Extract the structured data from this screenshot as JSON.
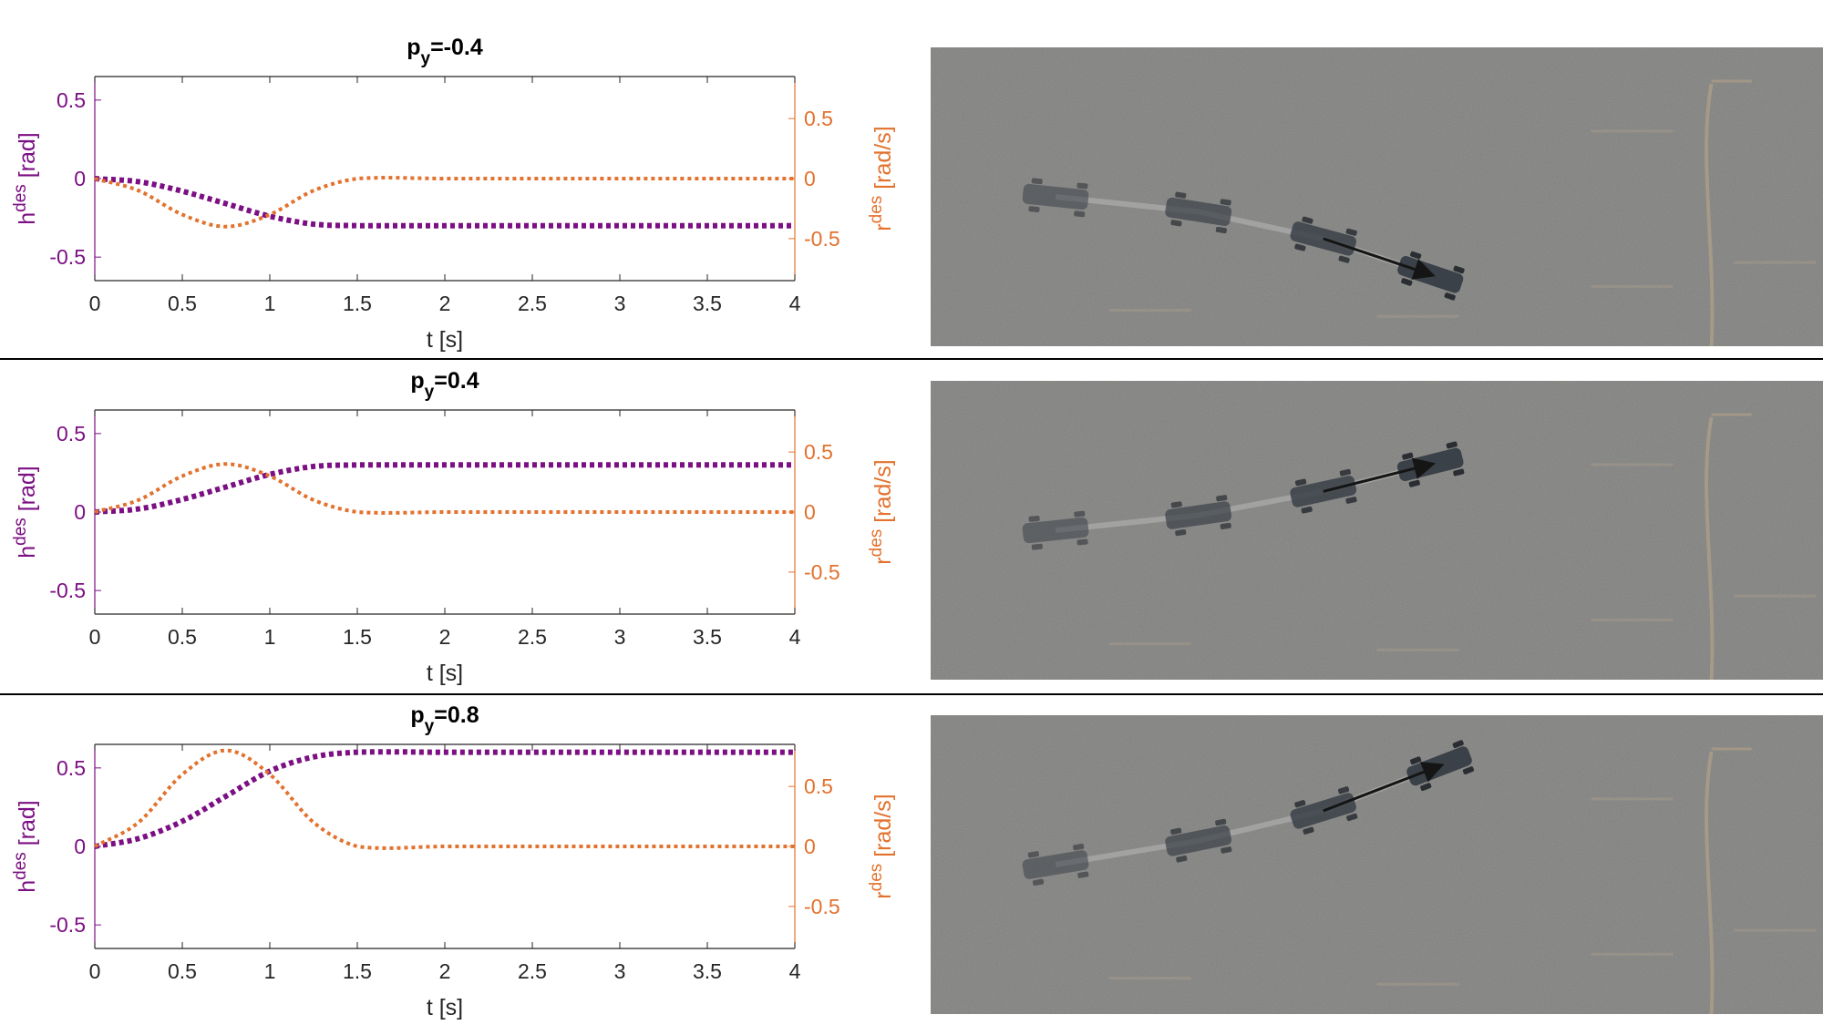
{
  "colors": {
    "h": "#7b0f83",
    "r": "#e2722e",
    "axis": "#262626",
    "floor": "#7d7d7b"
  },
  "xlabel": "t [s]",
  "left_ylabel": {
    "base": "h",
    "sup": "des",
    "unit": "[rad]"
  },
  "right_ylabel": {
    "base": "r",
    "sup": "des",
    "unit": "[rad/s]"
  },
  "chart_data": [
    {
      "type": "line",
      "title": {
        "base": "p",
        "sub": "y",
        "value": "=-0.4"
      },
      "xlim": [
        0,
        4
      ],
      "xticks": [
        "0",
        "0.5",
        "1",
        "1.5",
        "2",
        "2.5",
        "3",
        "3.5",
        "4"
      ],
      "ylim_left": [
        -0.65,
        0.65
      ],
      "yticks_left": [
        "-0.5",
        "0",
        "0.5"
      ],
      "ylim_right": [
        -0.85,
        0.85
      ],
      "yticks_right": [
        "-0.5",
        "0",
        "0.5"
      ],
      "series": [
        {
          "axis": "left",
          "x": [
            0,
            0.25,
            0.5,
            0.75,
            1.0,
            1.25,
            1.5,
            2,
            2.5,
            3,
            3.5,
            4
          ],
          "values": [
            0,
            -0.02,
            -0.08,
            -0.16,
            -0.24,
            -0.29,
            -0.3,
            -0.3,
            -0.3,
            -0.3,
            -0.3,
            -0.3
          ]
        },
        {
          "axis": "right",
          "x": [
            0,
            0.25,
            0.5,
            0.75,
            1.0,
            1.25,
            1.5,
            2,
            2.5,
            3,
            3.5,
            4
          ],
          "values": [
            0,
            -0.1,
            -0.3,
            -0.4,
            -0.3,
            -0.1,
            0,
            0,
            0,
            0,
            0,
            0
          ]
        }
      ]
    },
    {
      "type": "line",
      "title": {
        "base": "p",
        "sub": "y",
        "value": "=0.4"
      },
      "xlim": [
        0,
        4
      ],
      "xticks": [
        "0",
        "0.5",
        "1",
        "1.5",
        "2",
        "2.5",
        "3",
        "3.5",
        "4"
      ],
      "ylim_left": [
        -0.65,
        0.65
      ],
      "yticks_left": [
        "-0.5",
        "0",
        "0.5"
      ],
      "ylim_right": [
        -0.85,
        0.85
      ],
      "yticks_right": [
        "-0.5",
        "0",
        "0.5"
      ],
      "series": [
        {
          "axis": "left",
          "x": [
            0,
            0.25,
            0.5,
            0.75,
            1.0,
            1.25,
            1.5,
            2,
            2.5,
            3,
            3.5,
            4
          ],
          "values": [
            0,
            0.02,
            0.08,
            0.16,
            0.24,
            0.29,
            0.3,
            0.3,
            0.3,
            0.3,
            0.3,
            0.3
          ]
        },
        {
          "axis": "right",
          "x": [
            0,
            0.25,
            0.5,
            0.75,
            1.0,
            1.25,
            1.5,
            2,
            2.5,
            3,
            3.5,
            4
          ],
          "values": [
            0,
            0.1,
            0.3,
            0.4,
            0.3,
            0.1,
            0,
            0,
            0,
            0,
            0,
            0
          ]
        }
      ]
    },
    {
      "type": "line",
      "title": {
        "base": "p",
        "sub": "y",
        "value": "=0.8"
      },
      "xlim": [
        0,
        4
      ],
      "xticks": [
        "0",
        "0.5",
        "1",
        "1.5",
        "2",
        "2.5",
        "3",
        "3.5",
        "4"
      ],
      "ylim_left": [
        -0.65,
        0.65
      ],
      "yticks_left": [
        "-0.5",
        "0",
        "0.5"
      ],
      "ylim_right": [
        -0.85,
        0.85
      ],
      "yticks_right": [
        "-0.5",
        "0",
        "0.5"
      ],
      "series": [
        {
          "axis": "left",
          "x": [
            0,
            0.25,
            0.5,
            0.75,
            1.0,
            1.25,
            1.5,
            2,
            2.5,
            3,
            3.5,
            4
          ],
          "values": [
            0,
            0.05,
            0.16,
            0.32,
            0.48,
            0.57,
            0.6,
            0.6,
            0.6,
            0.6,
            0.6,
            0.6
          ]
        },
        {
          "axis": "right",
          "x": [
            0,
            0.25,
            0.5,
            0.75,
            1.0,
            1.25,
            1.5,
            2,
            2.5,
            3,
            3.5,
            4
          ],
          "values": [
            0,
            0.2,
            0.6,
            0.8,
            0.6,
            0.2,
            0,
            0,
            0,
            0,
            0,
            0
          ]
        }
      ]
    }
  ],
  "photos": [
    {
      "trajectory": [
        [
          0.14,
          0.5
        ],
        [
          0.3,
          0.55
        ],
        [
          0.44,
          0.64
        ],
        [
          0.56,
          0.76
        ]
      ]
    },
    {
      "trajectory": [
        [
          0.14,
          0.5
        ],
        [
          0.3,
          0.45
        ],
        [
          0.44,
          0.37
        ],
        [
          0.56,
          0.28
        ]
      ]
    },
    {
      "trajectory": [
        [
          0.14,
          0.5
        ],
        [
          0.3,
          0.42
        ],
        [
          0.44,
          0.32
        ],
        [
          0.57,
          0.17
        ]
      ]
    }
  ]
}
